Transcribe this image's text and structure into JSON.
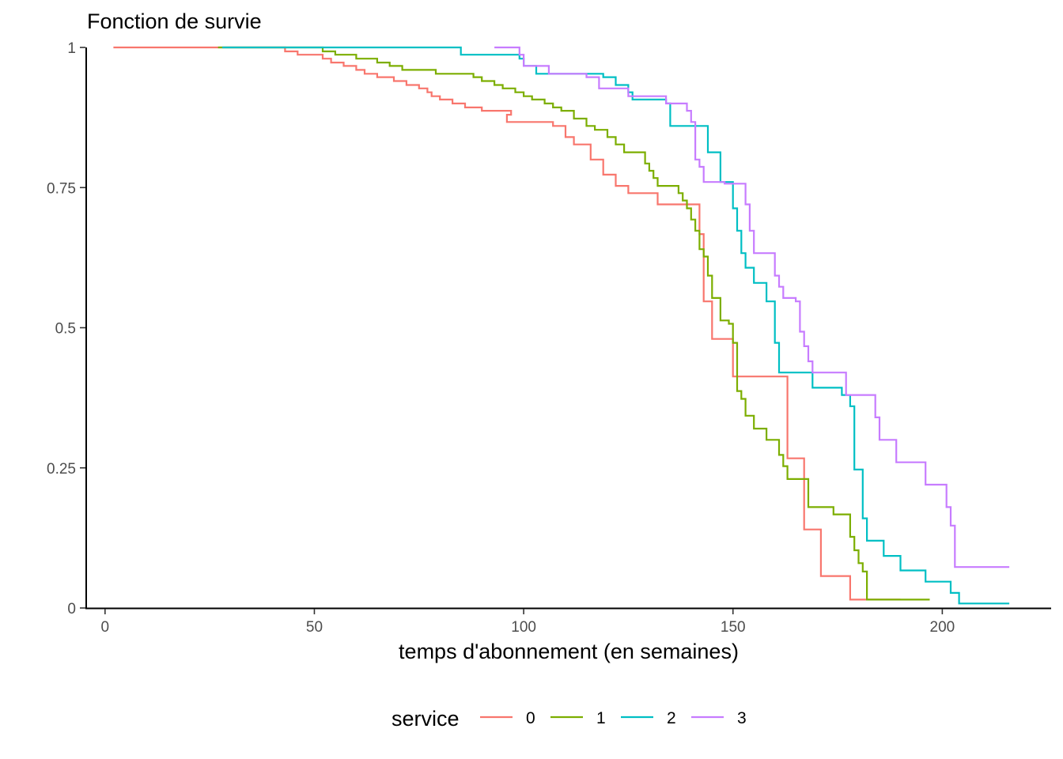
{
  "chart_data": {
    "type": "line",
    "step": true,
    "title": "Fonction de survie",
    "xlabel": "temps d'abonnement (en semaines)",
    "ylabel": "",
    "xlim": [
      -4.5,
      226
    ],
    "ylim": [
      0,
      1
    ],
    "x_ticks": [
      0,
      50,
      100,
      150,
      200
    ],
    "y_ticks": [
      0,
      0.25,
      0.5,
      0.75,
      1
    ],
    "y_tick_labels": [
      "0",
      "0.25",
      "0.5",
      "0.75",
      "1"
    ],
    "grid": false,
    "legend": {
      "title": "service",
      "position": "bottom"
    },
    "series": [
      {
        "name": "0",
        "color": "#F8766D",
        "points": [
          [
            2,
            1
          ],
          [
            43,
            1
          ],
          [
            43,
            0.993
          ],
          [
            46,
            0.987
          ],
          [
            52,
            0.98
          ],
          [
            54,
            0.973
          ],
          [
            57,
            0.967
          ],
          [
            60,
            0.96
          ],
          [
            62,
            0.953
          ],
          [
            65,
            0.947
          ],
          [
            69,
            0.94
          ],
          [
            72,
            0.933
          ],
          [
            75,
            0.927
          ],
          [
            77,
            0.92
          ],
          [
            78,
            0.913
          ],
          [
            80,
            0.907
          ],
          [
            83,
            0.9
          ],
          [
            86,
            0.893
          ],
          [
            90,
            0.887
          ],
          [
            97,
            0.88
          ],
          [
            96,
            0.873
          ],
          [
            96,
            0.867
          ],
          [
            107,
            0.86
          ],
          [
            110,
            0.84
          ],
          [
            112,
            0.827
          ],
          [
            116,
            0.8
          ],
          [
            119,
            0.773
          ],
          [
            122,
            0.753
          ],
          [
            125,
            0.74
          ],
          [
            132,
            0.72
          ],
          [
            142,
            0.687
          ],
          [
            142,
            0.667
          ],
          [
            143,
            0.547
          ],
          [
            145,
            0.48
          ],
          [
            150,
            0.413
          ],
          [
            163,
            0.267
          ],
          [
            167,
            0.14
          ],
          [
            171,
            0.057
          ],
          [
            178,
            0.015
          ],
          [
            190,
            0.015
          ]
        ]
      },
      {
        "name": "1",
        "color": "#7CAE00",
        "points": [
          [
            27,
            1
          ],
          [
            52,
            1
          ],
          [
            52,
            0.993
          ],
          [
            55,
            0.987
          ],
          [
            60,
            0.98
          ],
          [
            65,
            0.973
          ],
          [
            68,
            0.967
          ],
          [
            71,
            0.96
          ],
          [
            79,
            0.953
          ],
          [
            88,
            0.947
          ],
          [
            90,
            0.94
          ],
          [
            93,
            0.933
          ],
          [
            95,
            0.927
          ],
          [
            98,
            0.92
          ],
          [
            100,
            0.913
          ],
          [
            102,
            0.907
          ],
          [
            105,
            0.9
          ],
          [
            107,
            0.893
          ],
          [
            109,
            0.887
          ],
          [
            112,
            0.873
          ],
          [
            115,
            0.86
          ],
          [
            117,
            0.853
          ],
          [
            120,
            0.84
          ],
          [
            122,
            0.827
          ],
          [
            124,
            0.813
          ],
          [
            129,
            0.793
          ],
          [
            130,
            0.78
          ],
          [
            131,
            0.767
          ],
          [
            132,
            0.753
          ],
          [
            137,
            0.74
          ],
          [
            138,
            0.727
          ],
          [
            139,
            0.713
          ],
          [
            140,
            0.693
          ],
          [
            141,
            0.673
          ],
          [
            142,
            0.64
          ],
          [
            143,
            0.627
          ],
          [
            144,
            0.593
          ],
          [
            145,
            0.553
          ],
          [
            147,
            0.513
          ],
          [
            149,
            0.507
          ],
          [
            150,
            0.473
          ],
          [
            151,
            0.387
          ],
          [
            152,
            0.373
          ],
          [
            153,
            0.343
          ],
          [
            155,
            0.32
          ],
          [
            158,
            0.3
          ],
          [
            161,
            0.273
          ],
          [
            162,
            0.253
          ],
          [
            163,
            0.23
          ],
          [
            168,
            0.18
          ],
          [
            174,
            0.167
          ],
          [
            178,
            0.127
          ],
          [
            179,
            0.103
          ],
          [
            180,
            0.08
          ],
          [
            181,
            0.065
          ],
          [
            182,
            0.015
          ],
          [
            197,
            0.015
          ]
        ]
      },
      {
        "name": "2",
        "color": "#00BFC4",
        "points": [
          [
            28,
            1
          ],
          [
            85,
            1
          ],
          [
            85,
            0.987
          ],
          [
            99,
            0.98
          ],
          [
            100,
            0.967
          ],
          [
            103,
            0.953
          ],
          [
            119,
            0.947
          ],
          [
            122,
            0.933
          ],
          [
            125,
            0.92
          ],
          [
            126,
            0.907
          ],
          [
            134,
            0.9
          ],
          [
            135,
            0.86
          ],
          [
            141,
            0.86
          ],
          [
            144,
            0.813
          ],
          [
            147,
            0.76
          ],
          [
            150,
            0.713
          ],
          [
            151,
            0.673
          ],
          [
            152,
            0.633
          ],
          [
            153,
            0.607
          ],
          [
            155,
            0.58
          ],
          [
            158,
            0.547
          ],
          [
            160,
            0.473
          ],
          [
            161,
            0.42
          ],
          [
            168,
            0.42
          ],
          [
            169,
            0.393
          ],
          [
            176,
            0.38
          ],
          [
            178,
            0.36
          ],
          [
            179,
            0.247
          ],
          [
            181,
            0.16
          ],
          [
            182,
            0.12
          ],
          [
            186,
            0.093
          ],
          [
            190,
            0.067
          ],
          [
            196,
            0.047
          ],
          [
            202,
            0.027
          ],
          [
            204,
            0.008
          ],
          [
            216,
            0.008
          ]
        ]
      },
      {
        "name": "3",
        "color": "#C77CFF",
        "points": [
          [
            93,
            1
          ],
          [
            99,
            1
          ],
          [
            99,
            0.987
          ],
          [
            100,
            0.967
          ],
          [
            106,
            0.953
          ],
          [
            115,
            0.947
          ],
          [
            118,
            0.927
          ],
          [
            125,
            0.913
          ],
          [
            128,
            0.913
          ],
          [
            134,
            0.9
          ],
          [
            139,
            0.887
          ],
          [
            140,
            0.867
          ],
          [
            141,
            0.8
          ],
          [
            142,
            0.787
          ],
          [
            143,
            0.76
          ],
          [
            148,
            0.757
          ],
          [
            153,
            0.72
          ],
          [
            154,
            0.673
          ],
          [
            155,
            0.633
          ],
          [
            160,
            0.593
          ],
          [
            161,
            0.573
          ],
          [
            162,
            0.553
          ],
          [
            165,
            0.547
          ],
          [
            166,
            0.493
          ],
          [
            167,
            0.467
          ],
          [
            168,
            0.44
          ],
          [
            169,
            0.42
          ],
          [
            177,
            0.38
          ],
          [
            184,
            0.34
          ],
          [
            185,
            0.3
          ],
          [
            189,
            0.26
          ],
          [
            196,
            0.22
          ],
          [
            201,
            0.18
          ],
          [
            202,
            0.147
          ],
          [
            203,
            0.073
          ],
          [
            216,
            0.073
          ]
        ]
      }
    ]
  }
}
